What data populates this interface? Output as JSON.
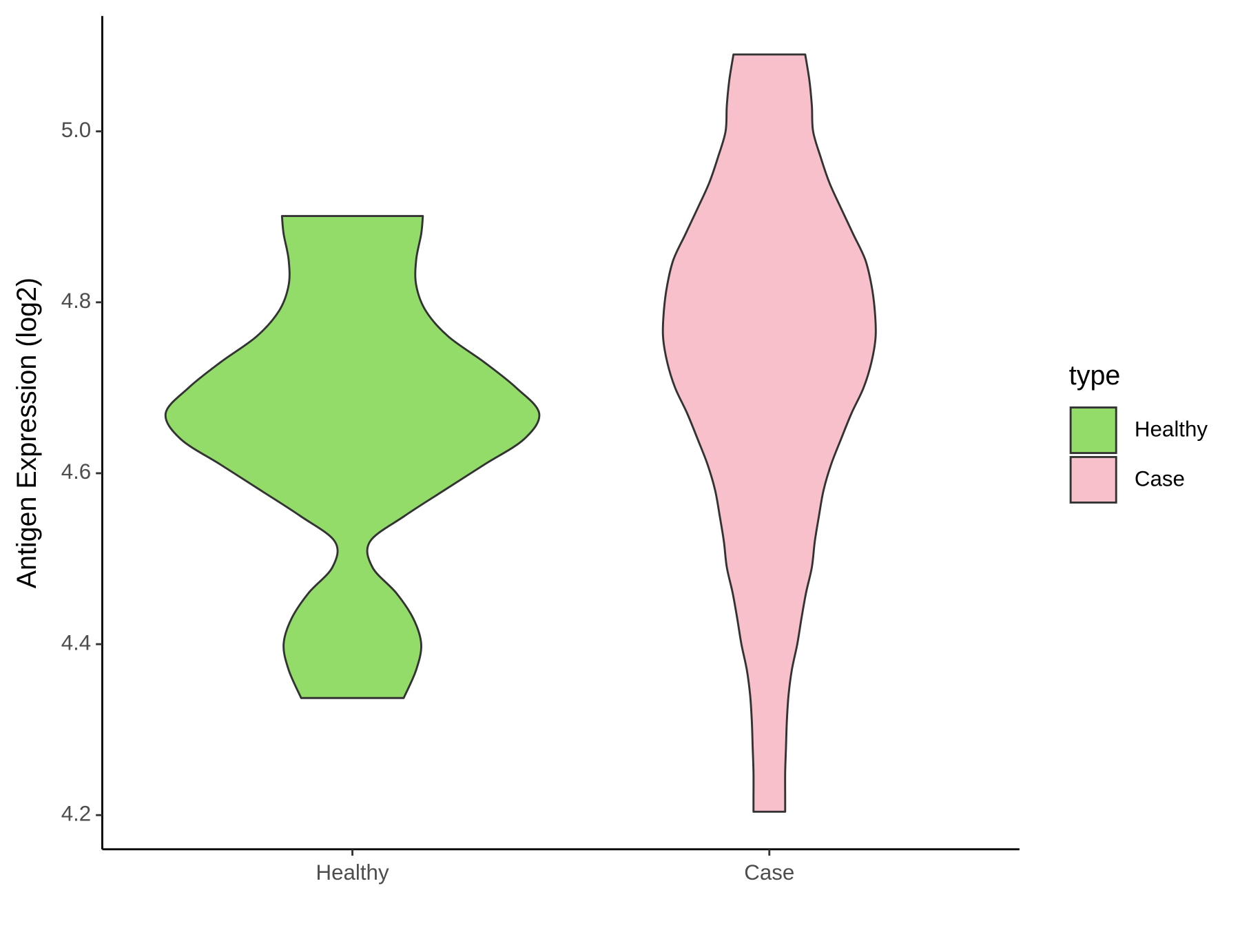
{
  "chart_data": {
    "type": "violin",
    "y_label": "Antigen Expression (log2)",
    "legend_title": "type",
    "legend_position": "right",
    "categories": [
      "Healthy",
      "Case"
    ],
    "ylim": [
      4.16,
      5.135
    ],
    "yticks": [
      4.2,
      4.4,
      4.6,
      4.8,
      {
        "value": 5,
        "label": "5.0"
      }
    ],
    "series": [
      {
        "name": "Healthy",
        "color": "#93dc6a",
        "y": [
          4.901,
          4.88,
          4.85,
          4.82,
          4.79,
          4.76,
          4.73,
          4.7,
          4.67,
          4.64,
          4.61,
          4.58,
          4.55,
          4.52,
          4.49,
          4.46,
          4.43,
          4.4,
          4.37,
          4.337
        ],
        "half_width": [
          0.169,
          0.165,
          0.153,
          0.153,
          0.176,
          0.23,
          0.316,
          0.393,
          0.448,
          0.412,
          0.316,
          0.22,
          0.125,
          0.042,
          0.048,
          0.105,
          0.146,
          0.165,
          0.153,
          0.123
        ]
      },
      {
        "name": "Case",
        "color": "#f7c0cb",
        "y": [
          5.09,
          5.06,
          5.03,
          5.0,
          4.97,
          4.94,
          4.91,
          4.88,
          4.85,
          4.82,
          4.79,
          4.76,
          4.73,
          4.7,
          4.67,
          4.64,
          4.61,
          4.58,
          4.55,
          4.52,
          4.49,
          4.46,
          4.43,
          4.4,
          4.37,
          4.34,
          4.31,
          4.28,
          4.25,
          4.22,
          4.204
        ],
        "half_width": [
          0.086,
          0.096,
          0.102,
          0.105,
          0.123,
          0.144,
          0.172,
          0.201,
          0.23,
          0.245,
          0.253,
          0.255,
          0.245,
          0.226,
          0.197,
          0.172,
          0.148,
          0.13,
          0.119,
          0.109,
          0.102,
          0.088,
          0.077,
          0.067,
          0.054,
          0.046,
          0.042,
          0.04,
          0.038,
          0.038,
          0.038
        ]
      }
    ]
  }
}
